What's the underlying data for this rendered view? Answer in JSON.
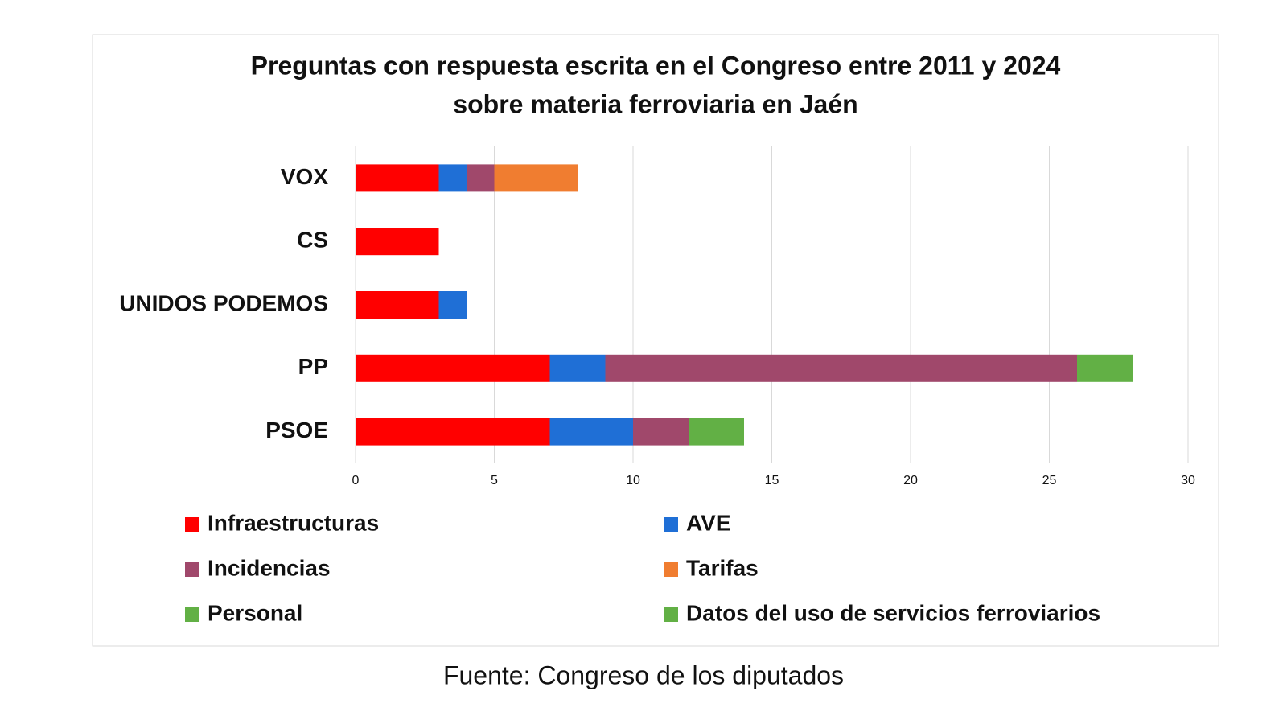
{
  "chart_data": {
    "type": "stacked-barh",
    "title": "Preguntas con respuesta escrita en el Congreso entre 2011 y 2024",
    "subtitle": "sobre materia ferroviaria en Jaén",
    "source": "Fuente: Congreso de los diputados",
    "categories": [
      "VOX",
      "CS",
      "UNIDOS PODEMOS",
      "PP",
      "PSOE"
    ],
    "series": [
      {
        "name": "Infraestructuras",
        "color": "#ff0000",
        "values": [
          3,
          3,
          3,
          7,
          7
        ]
      },
      {
        "name": "AVE",
        "color": "#1f6fd6",
        "values": [
          1,
          0,
          1,
          2,
          3
        ]
      },
      {
        "name": "Incidencias",
        "color": "#a0486b",
        "values": [
          1,
          0,
          0,
          17,
          2
        ]
      },
      {
        "name": "Tarifas",
        "color": "#f07d30",
        "values": [
          3,
          0,
          0,
          0,
          0
        ]
      },
      {
        "name": "Personal",
        "color": "#62b045",
        "values": [
          0,
          0,
          0,
          2,
          2
        ]
      },
      {
        "name": "Datos del uso de servicios ferroviarios",
        "color": "#62b045",
        "values": [
          0,
          0,
          0,
          0,
          0
        ]
      }
    ],
    "xlim": [
      0,
      30
    ],
    "xticks": [
      0,
      5,
      10,
      15,
      20,
      25,
      30
    ],
    "grid": true
  }
}
